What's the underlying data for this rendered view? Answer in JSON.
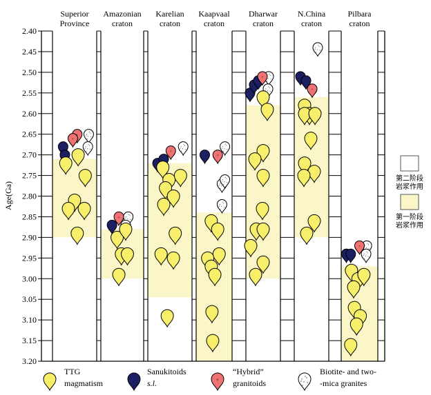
{
  "chart_data": {
    "type": "scatter",
    "title": "",
    "ylabel": "Age(Ga)",
    "ylim": [
      2.4,
      3.2
    ],
    "y_ticks": [
      "2.40",
      "2.45",
      "2.50",
      "2.55",
      "2.60",
      "2.65",
      "2.70",
      "2.75",
      "2.80",
      "2.85",
      "2.90",
      "2.95",
      "3.00",
      "3.05",
      "3.10",
      "3.15",
      "3.20"
    ],
    "cratons": [
      {
        "name_line1": "Superior",
        "name_line2": "Province",
        "stage1_range": [
          2.71,
          2.9
        ],
        "points": [
          {
            "t": "sanuk",
            "x": 0.24,
            "y": 2.68
          },
          {
            "t": "sanuk",
            "x": 0.28,
            "y": 2.7
          },
          {
            "t": "hybrid",
            "x": 0.56,
            "y": 2.65
          },
          {
            "t": "hybrid",
            "x": 0.46,
            "y": 2.66
          },
          {
            "t": "bio",
            "x": 0.82,
            "y": 2.65
          },
          {
            "t": "bio",
            "x": 0.8,
            "y": 2.68
          },
          {
            "t": "ttg",
            "x": 0.3,
            "y": 2.72
          },
          {
            "t": "ttg",
            "x": 0.58,
            "y": 2.7
          },
          {
            "t": "ttg",
            "x": 0.74,
            "y": 2.75
          },
          {
            "t": "ttg",
            "x": 0.5,
            "y": 2.81
          },
          {
            "t": "ttg",
            "x": 0.36,
            "y": 2.83
          },
          {
            "t": "ttg",
            "x": 0.72,
            "y": 2.83
          },
          {
            "t": "ttg",
            "x": 0.56,
            "y": 2.89
          }
        ]
      },
      {
        "name_line1": "Amazonian",
        "name_line2": "craton",
        "stage1_range": [
          2.88,
          3.0
        ],
        "points": [
          {
            "t": "sanuk",
            "x": 0.26,
            "y": 2.87
          },
          {
            "t": "hybrid",
            "x": 0.42,
            "y": 2.85
          },
          {
            "t": "bio",
            "x": 0.64,
            "y": 2.85
          },
          {
            "t": "bio",
            "x": 0.58,
            "y": 2.87
          },
          {
            "t": "ttg",
            "x": 0.38,
            "y": 2.9
          },
          {
            "t": "ttg",
            "x": 0.58,
            "y": 2.88
          },
          {
            "t": "ttg",
            "x": 0.48,
            "y": 2.94
          },
          {
            "t": "ttg",
            "x": 0.62,
            "y": 2.94
          },
          {
            "t": "ttg",
            "x": 0.42,
            "y": 2.99
          }
        ]
      },
      {
        "name_line1": "Karelian",
        "name_line2": "craton",
        "stage1_range": [
          2.72,
          3.045
        ],
        "points": [
          {
            "t": "sanuk",
            "x": 0.22,
            "y": 2.72
          },
          {
            "t": "sanuk",
            "x": 0.36,
            "y": 2.71
          },
          {
            "t": "hybrid",
            "x": 0.52,
            "y": 2.69
          },
          {
            "t": "bio",
            "x": 0.8,
            "y": 2.68
          },
          {
            "t": "ttg",
            "x": 0.34,
            "y": 2.73
          },
          {
            "t": "ttg",
            "x": 0.48,
            "y": 2.76
          },
          {
            "t": "ttg",
            "x": 0.74,
            "y": 2.75
          },
          {
            "t": "ttg",
            "x": 0.4,
            "y": 2.78
          },
          {
            "t": "ttg",
            "x": 0.58,
            "y": 2.8
          },
          {
            "t": "ttg",
            "x": 0.36,
            "y": 2.82
          },
          {
            "t": "ttg",
            "x": 0.62,
            "y": 2.89
          },
          {
            "t": "ttg",
            "x": 0.3,
            "y": 2.94
          },
          {
            "t": "ttg",
            "x": 0.58,
            "y": 2.95
          },
          {
            "t": "ttg",
            "x": 0.44,
            "y": 3.09
          }
        ]
      },
      {
        "name_line1": "Kaapvaal",
        "name_line2": "craton",
        "stage1_range": [
          2.84,
          3.2
        ],
        "points": [
          {
            "t": "sanuk",
            "x": 0.24,
            "y": 2.7
          },
          {
            "t": "hybrid",
            "x": 0.6,
            "y": 2.7
          },
          {
            "t": "bio",
            "x": 0.8,
            "y": 2.68
          },
          {
            "t": "bio",
            "x": 0.72,
            "y": 2.77
          },
          {
            "t": "bio",
            "x": 0.8,
            "y": 2.76
          },
          {
            "t": "bio",
            "x": 0.72,
            "y": 2.82
          },
          {
            "t": "ttg",
            "x": 0.42,
            "y": 2.86
          },
          {
            "t": "ttg",
            "x": 0.6,
            "y": 2.88
          },
          {
            "t": "ttg",
            "x": 0.64,
            "y": 2.94
          },
          {
            "t": "ttg",
            "x": 0.32,
            "y": 2.95
          },
          {
            "t": "ttg",
            "x": 0.42,
            "y": 2.97
          },
          {
            "t": "ttg",
            "x": 0.52,
            "y": 2.99
          },
          {
            "t": "ttg",
            "x": 0.44,
            "y": 3.08
          },
          {
            "t": "ttg",
            "x": 0.46,
            "y": 3.15
          }
        ]
      },
      {
        "name_line1": "Dharwar",
        "name_line2": "craton",
        "stage1_range": [
          2.58,
          3.0
        ],
        "points": [
          {
            "t": "sanuk",
            "x": 0.12,
            "y": 2.55
          },
          {
            "t": "sanuk",
            "x": 0.24,
            "y": 2.53
          },
          {
            "t": "sanuk",
            "x": 0.36,
            "y": 2.52
          },
          {
            "t": "hybrid",
            "x": 0.48,
            "y": 2.51
          },
          {
            "t": "bio",
            "x": 0.66,
            "y": 2.51
          },
          {
            "t": "bio",
            "x": 0.64,
            "y": 2.54
          },
          {
            "t": "ttg",
            "x": 0.5,
            "y": 2.56
          },
          {
            "t": "ttg",
            "x": 0.62,
            "y": 2.59
          },
          {
            "t": "ttg",
            "x": 0.5,
            "y": 2.69
          },
          {
            "t": "ttg",
            "x": 0.26,
            "y": 2.71
          },
          {
            "t": "ttg",
            "x": 0.5,
            "y": 2.75
          },
          {
            "t": "ttg",
            "x": 0.48,
            "y": 2.83
          },
          {
            "t": "ttg",
            "x": 0.3,
            "y": 2.88
          },
          {
            "t": "ttg",
            "x": 0.5,
            "y": 2.88
          },
          {
            "t": "ttg",
            "x": 0.14,
            "y": 2.92
          },
          {
            "t": "ttg",
            "x": 0.5,
            "y": 2.96
          },
          {
            "t": "ttg",
            "x": 0.28,
            "y": 2.99
          }
        ]
      },
      {
        "name_line1": "N.China",
        "name_line2": "craton",
        "stage1_range": [
          2.56,
          2.9
        ],
        "points": [
          {
            "t": "bio",
            "x": 0.68,
            "y": 2.44
          },
          {
            "t": "sanuk",
            "x": 0.18,
            "y": 2.51
          },
          {
            "t": "sanuk",
            "x": 0.34,
            "y": 2.52
          },
          {
            "t": "hybrid",
            "x": 0.52,
            "y": 2.54
          },
          {
            "t": "ttg",
            "x": 0.3,
            "y": 2.58
          },
          {
            "t": "ttg",
            "x": 0.44,
            "y": 2.6
          },
          {
            "t": "ttg",
            "x": 0.3,
            "y": 2.6
          },
          {
            "t": "ttg",
            "x": 0.6,
            "y": 2.6
          },
          {
            "t": "ttg",
            "x": 0.48,
            "y": 2.66
          },
          {
            "t": "ttg",
            "x": 0.3,
            "y": 2.72
          },
          {
            "t": "ttg",
            "x": 0.58,
            "y": 2.74
          },
          {
            "t": "ttg",
            "x": 0.28,
            "y": 2.75
          },
          {
            "t": "ttg",
            "x": 0.58,
            "y": 2.86
          },
          {
            "t": "ttg",
            "x": 0.36,
            "y": 2.89
          }
        ]
      },
      {
        "name_line1": "Pilbara",
        "name_line2": "craton",
        "stage1_range": [
          2.97,
          3.2
        ],
        "points": [
          {
            "t": "sanuk",
            "x": 0.14,
            "y": 2.94
          },
          {
            "t": "sanuk",
            "x": 0.26,
            "y": 2.94
          },
          {
            "t": "hybrid",
            "x": 0.5,
            "y": 2.92
          },
          {
            "t": "bio",
            "x": 0.7,
            "y": 2.92
          },
          {
            "t": "bio",
            "x": 0.68,
            "y": 2.94
          },
          {
            "t": "ttg",
            "x": 0.28,
            "y": 2.98
          },
          {
            "t": "ttg",
            "x": 0.46,
            "y": 3.0
          },
          {
            "t": "ttg",
            "x": 0.62,
            "y": 2.99
          },
          {
            "t": "ttg",
            "x": 0.34,
            "y": 3.02
          },
          {
            "t": "ttg",
            "x": 0.36,
            "y": 3.07
          },
          {
            "t": "ttg",
            "x": 0.52,
            "y": 3.09
          },
          {
            "t": "ttg",
            "x": 0.42,
            "y": 3.11
          },
          {
            "t": "ttg",
            "x": 0.26,
            "y": 3.16
          }
        ]
      }
    ],
    "stage_legend": [
      {
        "text_line1": "第二阶段",
        "text_line2": "岩浆作用",
        "fill": "#ffffff"
      },
      {
        "text_line1": "第一阶段",
        "text_line2": "岩浆作用",
        "fill": "#fbf6c7"
      }
    ],
    "symbol_legend": [
      {
        "type": "ttg",
        "line1": "TTG",
        "line2": "magmatism"
      },
      {
        "type": "sanuk",
        "line1": "Sanukitoids",
        "line2": "s.l."
      },
      {
        "type": "hybrid",
        "line1": "“Hybrid”",
        "line2": "granitoids"
      },
      {
        "type": "bio",
        "line1": "Biotite- and two-",
        "line2": "-mica granites"
      }
    ],
    "colors": {
      "ttg": "#f7ee6a",
      "sanuk": "#1d1f63",
      "hybrid": "#ef7272",
      "bio": "#ffffff",
      "stage1_band": "#fbf6c7"
    }
  }
}
